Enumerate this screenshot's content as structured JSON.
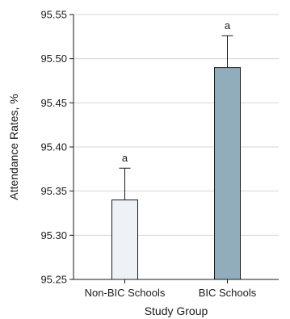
{
  "chart_data": {
    "type": "bar",
    "title": "",
    "xlabel": "Study Group",
    "ylabel": "Attendance Rates, %",
    "categories": [
      "Non-BIC Schools",
      "BIC Schools"
    ],
    "values": [
      95.34,
      95.49
    ],
    "error_upper": [
      95.376,
      95.526
    ],
    "data_labels": [
      "a",
      "a"
    ],
    "bar_colors": [
      "#eef2f6",
      "#91acba"
    ],
    "ylim": [
      95.25,
      95.55
    ],
    "yticks": [
      95.25,
      95.3,
      95.35,
      95.4,
      95.45,
      95.5,
      95.55
    ],
    "ytick_labels": [
      "95.25",
      "95.30",
      "95.35",
      "95.40",
      "95.45",
      "95.50",
      "95.55"
    ],
    "grid": "horizontal"
  }
}
